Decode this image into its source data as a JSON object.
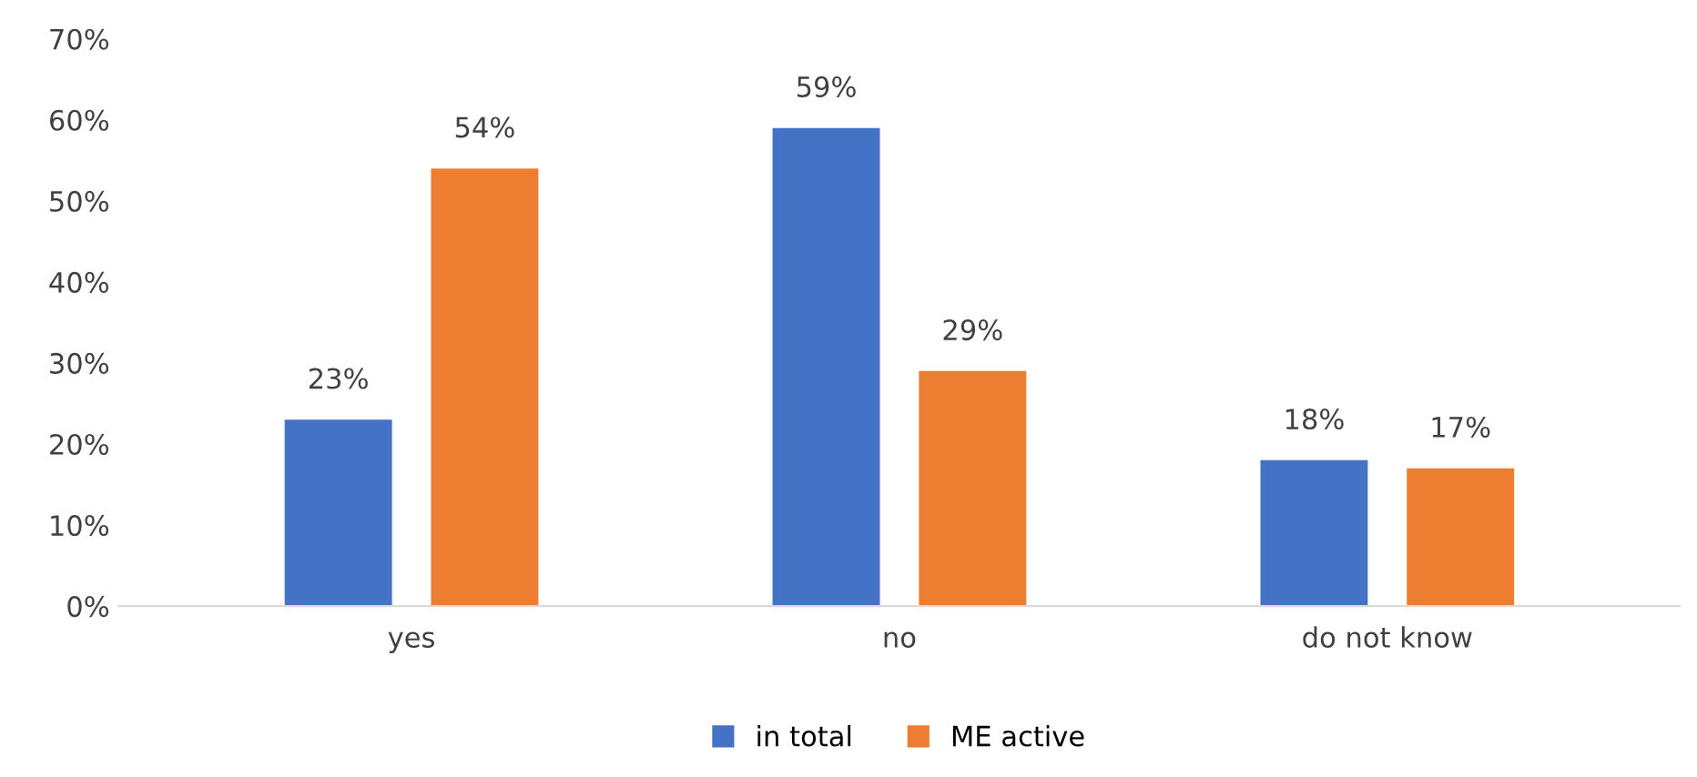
{
  "chart_data": {
    "type": "bar",
    "categories": [
      "yes",
      "no",
      "do not know"
    ],
    "series": [
      {
        "name": "in total",
        "color": "#4472c4",
        "values": [
          23,
          59,
          18
        ],
        "value_labels": [
          "23%",
          "59%",
          "18%"
        ]
      },
      {
        "name": "ME active",
        "color": "#ed7d31",
        "values": [
          54,
          29,
          17
        ],
        "value_labels": [
          "54%",
          "29%",
          "17%"
        ]
      }
    ],
    "ylim": [
      0,
      70
    ],
    "yticks": [
      {
        "value": 0,
        "label": "0%"
      },
      {
        "value": 10,
        "label": "10%"
      },
      {
        "value": 20,
        "label": "20%"
      },
      {
        "value": 30,
        "label": "30%"
      },
      {
        "value": 40,
        "label": "40%"
      },
      {
        "value": 50,
        "label": "50%"
      },
      {
        "value": 60,
        "label": "60%"
      },
      {
        "value": 70,
        "label": "70%"
      }
    ],
    "grid": false,
    "legend": "bottom"
  }
}
